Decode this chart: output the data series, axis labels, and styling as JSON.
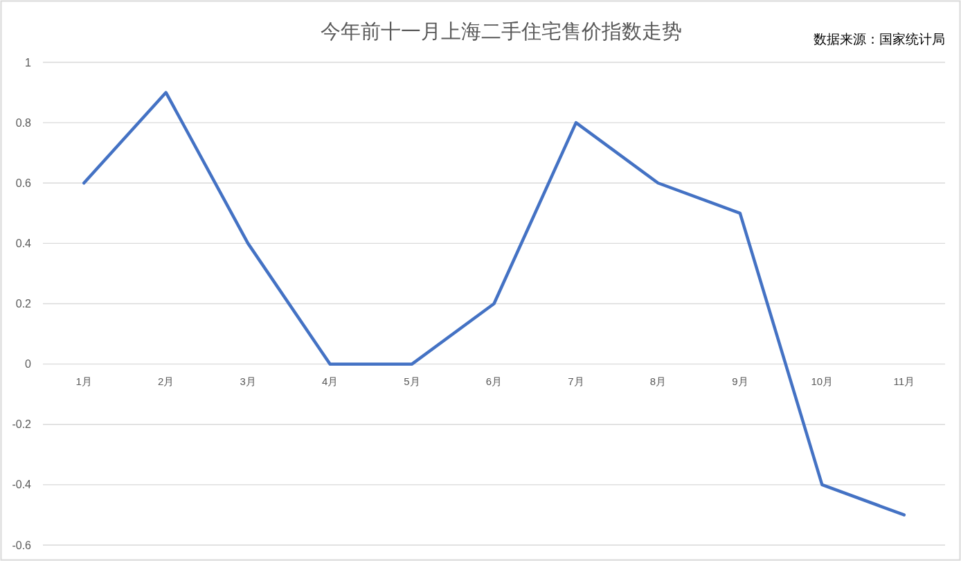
{
  "chart_data": {
    "type": "line",
    "title": "今年前十一月上海二手住宅售价指数走势",
    "annotations": [
      "数据来源：国家统计局"
    ],
    "categories": [
      "1月",
      "2月",
      "3月",
      "4月",
      "5月",
      "6月",
      "7月",
      "8月",
      "9月",
      "10月",
      "11月"
    ],
    "series": [
      {
        "color": "#4472c4",
        "values": [
          0.6,
          0.9,
          0.4,
          0,
          0,
          0.2,
          0.8,
          0.6,
          0.5,
          -0.4,
          -0.5
        ]
      }
    ],
    "ylim": [
      -0.6,
      1
    ],
    "yticks": [
      -0.6,
      -0.4,
      -0.2,
      0,
      0.2,
      0.4,
      0.6,
      0.8,
      1
    ],
    "grid": "y"
  }
}
